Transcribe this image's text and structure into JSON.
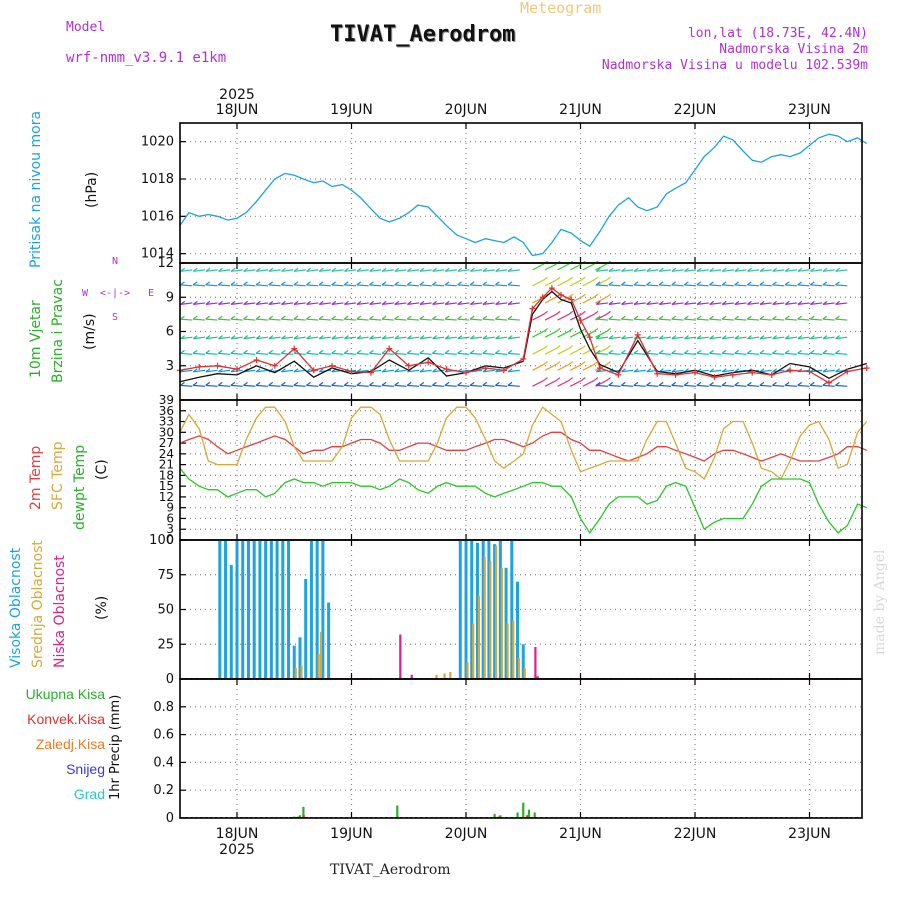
{
  "header": {
    "model_label": "Model",
    "model_name": "wrf-nmm_v3.9.1 e1km",
    "meteogram_label": "Meteogram",
    "station_title": "TIVAT_Aerodrom",
    "lonlat": "lon,lat (18.73E, 42.4N)",
    "elevation": "Nadmorska Visina 2m",
    "model_elevation": "Nadmorska Visina u modelu 102.539m"
  },
  "footer": {
    "station": "TIVAT_Aerodrom",
    "credit": "made by Angel"
  },
  "chart_data": [
    {
      "type": "line",
      "id": "pressure",
      "ylabel_lines": [
        "Pritisak na nivou mora",
        "(hPa)"
      ],
      "ylim": [
        1013.5,
        1021
      ],
      "yticks": [
        1014,
        1016,
        1018,
        1020
      ],
      "x_days": [
        "18JUN",
        "19JUN",
        "20JUN",
        "21JUN",
        "22JUN",
        "23JUN"
      ],
      "year": "2025",
      "grid": true,
      "series": [
        {
          "color": "#1ca3e0",
          "x": [
            -0.5,
            -0.42,
            -0.33,
            -0.25,
            -0.17,
            -0.08,
            0,
            0.08,
            0.17,
            0.25,
            0.33,
            0.42,
            0.5,
            0.58,
            0.67,
            0.75,
            0.83,
            0.92,
            1,
            1.08,
            1.17,
            1.25,
            1.33,
            1.42,
            1.5,
            1.58,
            1.67,
            1.75,
            1.83,
            1.92,
            2,
            2.08,
            2.17,
            2.25,
            2.33,
            2.42,
            2.5,
            2.58,
            2.67,
            2.75,
            2.83,
            2.92,
            3,
            3.08,
            3.17,
            3.25,
            3.33,
            3.42,
            3.5,
            3.58,
            3.67,
            3.75,
            3.83,
            3.92,
            4,
            4.08,
            4.17,
            4.25,
            4.33,
            4.42,
            4.5,
            4.58,
            4.67,
            4.75,
            4.83,
            4.92,
            5,
            5.08,
            5.17,
            5.25,
            5.33,
            5.42,
            5.5
          ],
          "y": [
            1015.5,
            1016.2,
            1016.0,
            1016.1,
            1016.0,
            1015.8,
            1015.9,
            1016.2,
            1016.8,
            1017.4,
            1018.0,
            1018.3,
            1018.2,
            1018.0,
            1017.8,
            1017.9,
            1017.6,
            1017.7,
            1017.4,
            1017.0,
            1016.4,
            1015.9,
            1015.7,
            1015.9,
            1016.2,
            1016.6,
            1016.5,
            1016.0,
            1015.5,
            1015.0,
            1014.8,
            1014.6,
            1014.8,
            1014.7,
            1014.6,
            1014.9,
            1014.6,
            1013.9,
            1014.0,
            1014.6,
            1015.3,
            1015.1,
            1014.7,
            1014.4,
            1015.2,
            1016.0,
            1016.6,
            1017.0,
            1016.5,
            1016.3,
            1016.5,
            1017.2,
            1017.5,
            1017.8,
            1018.5,
            1019.2,
            1019.7,
            1020.3,
            1020.1,
            1019.5,
            1019.0,
            1018.9,
            1019.2,
            1019.3,
            1019.2,
            1019.4,
            1019.8,
            1020.2,
            1020.4,
            1020.3,
            1020.0,
            1020.2,
            1019.9
          ]
        }
      ]
    },
    {
      "type": "line",
      "id": "wind",
      "ylabel_lines": [
        "10m Vjetar",
        "Brzina i Pravac",
        "(m/s)"
      ],
      "compass_legend": [
        "N",
        "W",
        "E",
        "S"
      ],
      "ylim": [
        0,
        12
      ],
      "yticks": [
        3,
        6,
        9,
        12
      ],
      "grid": true,
      "series": [
        {
          "name": "speed",
          "color": "#111111",
          "x": [
            -0.5,
            -0.33,
            -0.17,
            0,
            0.17,
            0.33,
            0.5,
            0.67,
            0.83,
            1,
            1.17,
            1.33,
            1.5,
            1.67,
            1.83,
            2,
            2.17,
            2.33,
            2.5,
            2.58,
            2.67,
            2.75,
            2.83,
            2.92,
            3,
            3.08,
            3.17,
            3.33,
            3.5,
            3.67,
            3.83,
            4,
            4.17,
            4.33,
            4.5,
            4.67,
            4.83,
            5,
            5.17,
            5.33,
            5.5
          ],
          "y": [
            1.6,
            2.0,
            2.3,
            2.2,
            3.0,
            2.4,
            3.4,
            2.0,
            2.8,
            2.3,
            2.5,
            3.5,
            2.6,
            3.7,
            2.1,
            2.4,
            3.0,
            2.8,
            3.4,
            7.5,
            8.8,
            9.5,
            8.8,
            8.5,
            6.2,
            4.5,
            3.1,
            2.4,
            5.2,
            2.5,
            2.3,
            2.6,
            2.1,
            2.4,
            2.6,
            2.2,
            3.2,
            2.9,
            1.9,
            2.7,
            3.2
          ]
        },
        {
          "name": "gust",
          "color": "#e03030",
          "x": [
            -0.5,
            -0.33,
            -0.17,
            0,
            0.17,
            0.33,
            0.5,
            0.67,
            0.83,
            1,
            1.17,
            1.33,
            1.5,
            1.67,
            1.83,
            2,
            2.17,
            2.33,
            2.5,
            2.58,
            2.67,
            2.75,
            2.83,
            2.92,
            3,
            3.08,
            3.17,
            3.33,
            3.5,
            3.67,
            3.83,
            4,
            4.17,
            4.33,
            4.5,
            4.67,
            4.83,
            5,
            5.17,
            5.33,
            5.5
          ],
          "y": [
            2.6,
            2.9,
            3.0,
            2.7,
            3.5,
            3.0,
            4.5,
            2.6,
            3.0,
            2.5,
            2.4,
            4.5,
            3.0,
            3.3,
            2.7,
            2.4,
            2.8,
            2.6,
            3.6,
            8.0,
            9.0,
            9.8,
            9.2,
            8.8,
            7.0,
            5.5,
            2.8,
            2.2,
            5.7,
            2.3,
            2.2,
            2.4,
            2.0,
            2.2,
            2.4,
            2.2,
            2.6,
            2.5,
            1.5,
            2.5,
            2.8
          ]
        }
      ]
    },
    {
      "type": "line",
      "id": "temperature",
      "ylabel_lines": [
        "2m Temp",
        "SFC Temp",
        "dewpt Temp",
        "(C)"
      ],
      "ylim": [
        0,
        39
      ],
      "yticks": [
        0,
        3,
        6,
        9,
        12,
        15,
        18,
        21,
        24,
        27,
        30,
        33,
        36,
        39
      ],
      "grid": true,
      "series": [
        {
          "name": "2m Temp",
          "color": "#e04040",
          "x": [
            -0.5,
            -0.42,
            -0.33,
            -0.25,
            -0.17,
            -0.08,
            0,
            0.08,
            0.17,
            0.25,
            0.33,
            0.42,
            0.5,
            0.58,
            0.67,
            0.75,
            0.83,
            0.92,
            1,
            1.08,
            1.17,
            1.25,
            1.33,
            1.42,
            1.5,
            1.58,
            1.67,
            1.75,
            1.83,
            1.92,
            2,
            2.08,
            2.17,
            2.25,
            2.33,
            2.42,
            2.5,
            2.58,
            2.67,
            2.75,
            2.83,
            2.92,
            3,
            3.08,
            3.17,
            3.25,
            3.33,
            3.42,
            3.5,
            3.58,
            3.67,
            3.75,
            3.83,
            3.92,
            4,
            4.08,
            4.17,
            4.25,
            4.33,
            4.42,
            4.5,
            4.58,
            4.67,
            4.75,
            4.83,
            4.92,
            5,
            5.08,
            5.17,
            5.25,
            5.33,
            5.42,
            5.5
          ],
          "y": [
            27,
            28,
            29,
            28,
            26,
            24,
            25,
            26,
            27,
            28,
            29,
            28,
            26,
            24,
            25,
            25,
            26,
            26,
            27,
            28,
            28,
            27,
            25,
            25,
            26,
            27,
            27,
            26,
            25,
            25,
            25,
            26,
            27,
            28,
            28,
            27,
            26,
            27,
            29,
            30,
            30,
            28,
            27,
            25,
            25,
            24,
            23,
            22,
            23,
            24,
            26,
            26,
            25,
            24,
            23,
            22,
            24,
            25,
            25,
            24,
            23,
            22,
            23,
            24,
            23,
            22,
            22,
            22,
            23,
            24,
            26,
            26,
            25
          ]
        },
        {
          "name": "SFC Temp",
          "color": "#d8a838",
          "x": [
            -0.5,
            -0.42,
            -0.33,
            -0.25,
            -0.17,
            -0.08,
            0,
            0.08,
            0.17,
            0.25,
            0.33,
            0.42,
            0.5,
            0.58,
            0.67,
            0.75,
            0.83,
            0.92,
            1,
            1.08,
            1.17,
            1.25,
            1.33,
            1.42,
            1.5,
            1.58,
            1.67,
            1.75,
            1.83,
            1.92,
            2,
            2.08,
            2.17,
            2.25,
            2.33,
            2.42,
            2.5,
            2.58,
            2.67,
            2.75,
            2.83,
            2.92,
            3,
            3.08,
            3.17,
            3.25,
            3.33,
            3.42,
            3.5,
            3.58,
            3.67,
            3.75,
            3.83,
            3.92,
            4,
            4.08,
            4.17,
            4.25,
            4.33,
            4.42,
            4.5,
            4.58,
            4.67,
            4.75,
            4.83,
            4.92,
            5,
            5.08,
            5.17,
            5.25,
            5.33,
            5.42,
            5.5
          ],
          "y": [
            30,
            35,
            31,
            22,
            21,
            21,
            21,
            28,
            34,
            37,
            37,
            33,
            26,
            22,
            22,
            22,
            22,
            26,
            34,
            37,
            37,
            35,
            28,
            22,
            22,
            22,
            22,
            27,
            34,
            37,
            37,
            34,
            28,
            22,
            20,
            22,
            24,
            32,
            37,
            35,
            33,
            25,
            19,
            20,
            21,
            22,
            22,
            22,
            22,
            28,
            33,
            33,
            27,
            20,
            19,
            17,
            23,
            31,
            33,
            33,
            27,
            20,
            19,
            17,
            22,
            29,
            32,
            33,
            28,
            20,
            21,
            30,
            33
          ]
        },
        {
          "name": "dewpt Temp",
          "color": "#28c828",
          "x": [
            -0.5,
            -0.42,
            -0.33,
            -0.25,
            -0.17,
            -0.08,
            0,
            0.08,
            0.17,
            0.25,
            0.33,
            0.42,
            0.5,
            0.58,
            0.67,
            0.75,
            0.83,
            0.92,
            1,
            1.08,
            1.17,
            1.25,
            1.33,
            1.42,
            1.5,
            1.58,
            1.67,
            1.75,
            1.83,
            1.92,
            2,
            2.08,
            2.17,
            2.25,
            2.33,
            2.42,
            2.5,
            2.58,
            2.67,
            2.75,
            2.83,
            2.92,
            3,
            3.08,
            3.17,
            3.25,
            3.33,
            3.42,
            3.5,
            3.58,
            3.67,
            3.75,
            3.83,
            3.92,
            4,
            4.08,
            4.17,
            4.25,
            4.33,
            4.42,
            4.5,
            4.58,
            4.67,
            4.75,
            4.83,
            4.92,
            5,
            5.08,
            5.17,
            5.25,
            5.33,
            5.42,
            5.5
          ],
          "y": [
            20,
            17,
            15,
            14,
            14,
            12,
            13,
            14,
            14,
            12,
            13,
            16,
            17,
            16,
            16,
            15,
            16,
            16,
            16,
            15,
            15,
            14,
            15,
            17,
            16,
            14,
            13,
            15,
            16,
            15,
            15,
            15,
            13,
            12,
            13,
            14,
            15,
            16,
            16,
            15,
            15,
            12,
            6,
            2,
            6,
            10,
            12,
            12,
            12,
            10,
            11,
            15,
            16,
            15,
            9,
            3,
            5,
            6,
            6,
            6,
            10,
            15,
            17,
            17,
            17,
            17,
            16,
            10,
            5,
            2,
            4,
            10,
            9
          ]
        }
      ]
    },
    {
      "type": "bar",
      "id": "clouds",
      "ylabel_lines": [
        "Visoka Oblacnost",
        "Srednja Oblacnost",
        "Niska Oblacnost",
        "(%)"
      ],
      "ylim": [
        0,
        100
      ],
      "yticks": [
        0,
        25,
        50,
        75,
        100
      ],
      "grid": true,
      "series": [
        {
          "name": "Visoka Oblacnost",
          "color": "#1ca3e0",
          "x": [
            -0.15,
            -0.1,
            -0.05,
            0,
            0.05,
            0.1,
            0.15,
            0.2,
            0.25,
            0.3,
            0.35,
            0.4,
            0.45,
            0.5,
            0.55,
            0.6,
            0.65,
            0.7,
            0.75,
            0.8,
            1.95,
            2.0,
            2.05,
            2.1,
            2.15,
            2.2,
            2.25,
            2.3,
            2.35,
            2.4,
            2.45,
            2.5
          ],
          "values": [
            100,
            100,
            82,
            100,
            100,
            100,
            100,
            100,
            100,
            100,
            100,
            100,
            100,
            24,
            30,
            72,
            100,
            100,
            100,
            55,
            100,
            100,
            100,
            98,
            100,
            100,
            97,
            100,
            80,
            100,
            70,
            25
          ]
        },
        {
          "name": "Srednja Oblacnost",
          "color": "#d8a838",
          "x": [
            0.5,
            0.55,
            0.7,
            0.72,
            1.73,
            1.8,
            1.85,
            2.0,
            2.05,
            2.1,
            2.15,
            2.2,
            2.25,
            2.3,
            2.35,
            2.4,
            2.45,
            2.5
          ],
          "values": [
            8,
            10,
            18,
            34,
            3,
            4,
            5,
            12,
            40,
            60,
            88,
            85,
            96,
            80,
            40,
            42,
            15,
            8
          ]
        },
        {
          "name": "Niska Oblacnost",
          "color": "#e0208a",
          "x": [
            1.4,
            1.5,
            2.58,
            2.6
          ],
          "values": [
            32,
            3,
            23,
            2
          ]
        }
      ]
    },
    {
      "type": "bar",
      "id": "precip",
      "ylabel_lines": [
        "1hr Precip (mm)"
      ],
      "legend": [
        {
          "label": "Ukupna Kisa",
          "color": "#28b028"
        },
        {
          "label": "Konvek.Kisa",
          "color": "#e03030"
        },
        {
          "label": "Zaledj.Kisa",
          "color": "#f07820"
        },
        {
          "label": "Snijeg",
          "color": "#3838e0"
        },
        {
          "label": "Grad",
          "color": "#28c8c8"
        }
      ],
      "ylim": [
        0,
        1
      ],
      "yticks": [
        0,
        0.2,
        0.4,
        0.6,
        0.8
      ],
      "grid": true,
      "series": [
        {
          "name": "Ukupna Kisa",
          "color": "#28b028",
          "x": [
            0.5,
            0.55,
            0.58,
            1.4,
            2.25,
            2.3,
            2.45,
            2.5,
            2.55,
            2.6
          ],
          "values": [
            0.01,
            0.02,
            0.08,
            0.09,
            0.03,
            0.02,
            0.04,
            0.11,
            0.06,
            0.04
          ]
        },
        {
          "name": "Konvek.Kisa",
          "color": "#e03030",
          "x": [
            0.52,
            0.57,
            2.27,
            2.52
          ],
          "values": [
            0.01,
            0.02,
            0.01,
            0.02
          ]
        }
      ]
    }
  ]
}
